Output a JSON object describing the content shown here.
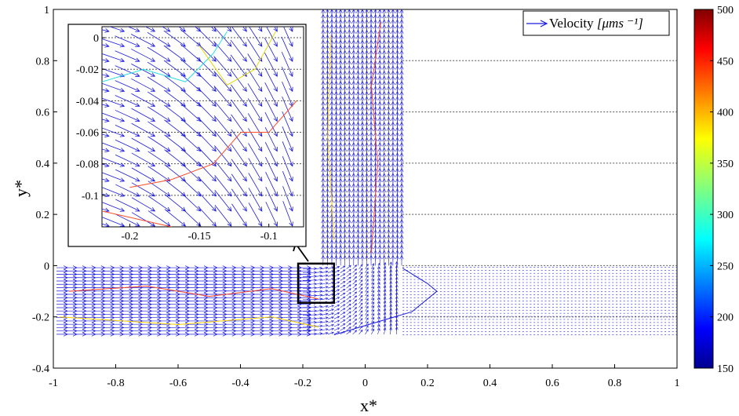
{
  "chart_data": [
    {
      "type": "quiver",
      "xlabel": "x*",
      "ylabel": "y*",
      "xlim": [
        -1,
        1
      ],
      "ylim": [
        -0.4,
        1
      ],
      "xticks": [
        "-1",
        "-0.8",
        "-0.6",
        "-0.4",
        "-0.2",
        "0",
        "0.2",
        "0.4",
        "0.6",
        "0.8",
        "1"
      ],
      "yticks": [
        "-0.4",
        "-0.2",
        "0",
        "0.2",
        "0.4",
        "0.6",
        "0.8",
        "1"
      ],
      "xtick_values": [
        -1,
        -0.8,
        -0.6,
        -0.4,
        -0.2,
        0,
        0.2,
        0.4,
        0.6,
        0.8,
        1
      ],
      "ytick_values": [
        -0.4,
        -0.2,
        0,
        0.2,
        0.4,
        0.6,
        0.8,
        1
      ],
      "hgrid_values": [
        0.8,
        0.6,
        0.4,
        0.2,
        0,
        -0.2
      ],
      "legend": {
        "label_prefix": "Velocity ",
        "label_units": "[μms ⁻¹]",
        "placement": "top-right"
      },
      "grid": "dotted horizontal lines",
      "regions": {
        "horizontal_channel": {
          "x": [
            -1,
            1
          ],
          "y": [
            -0.28,
            0
          ]
        },
        "vertical_channel": {
          "x": [
            -0.14,
            0.12
          ],
          "y": [
            0,
            1
          ]
        }
      },
      "highlight_box": {
        "x": [
          -0.215,
          -0.1
        ],
        "y": [
          -0.145,
          0.008
        ]
      },
      "arrow_color": "#1a1adf"
    },
    {
      "type": "quiver",
      "name": "zoom inset",
      "xlim": [
        -0.22,
        -0.075
      ],
      "ylim": [
        -0.12,
        0.007
      ],
      "xticks": [
        "-0.2",
        "-0.15",
        "-0.1"
      ],
      "yticks": [
        "0",
        "-0.02",
        "-0.04",
        "-0.06",
        "-0.08",
        "-0.1"
      ],
      "xtick_values": [
        -0.2,
        -0.15,
        -0.1
      ],
      "ytick_values": [
        0,
        -0.02,
        -0.04,
        -0.06,
        -0.08,
        -0.1
      ],
      "grid": "dotted horizontal lines",
      "arrow_color": "#1a1adf"
    },
    {
      "type": "colorbar",
      "colormap": "jet",
      "range": [
        150,
        500
      ],
      "ticks": [
        "500",
        "450",
        "400",
        "350",
        "300",
        "250",
        "200",
        "150"
      ],
      "tick_values": [
        500,
        450,
        400,
        350,
        300,
        250,
        200,
        150
      ]
    }
  ]
}
